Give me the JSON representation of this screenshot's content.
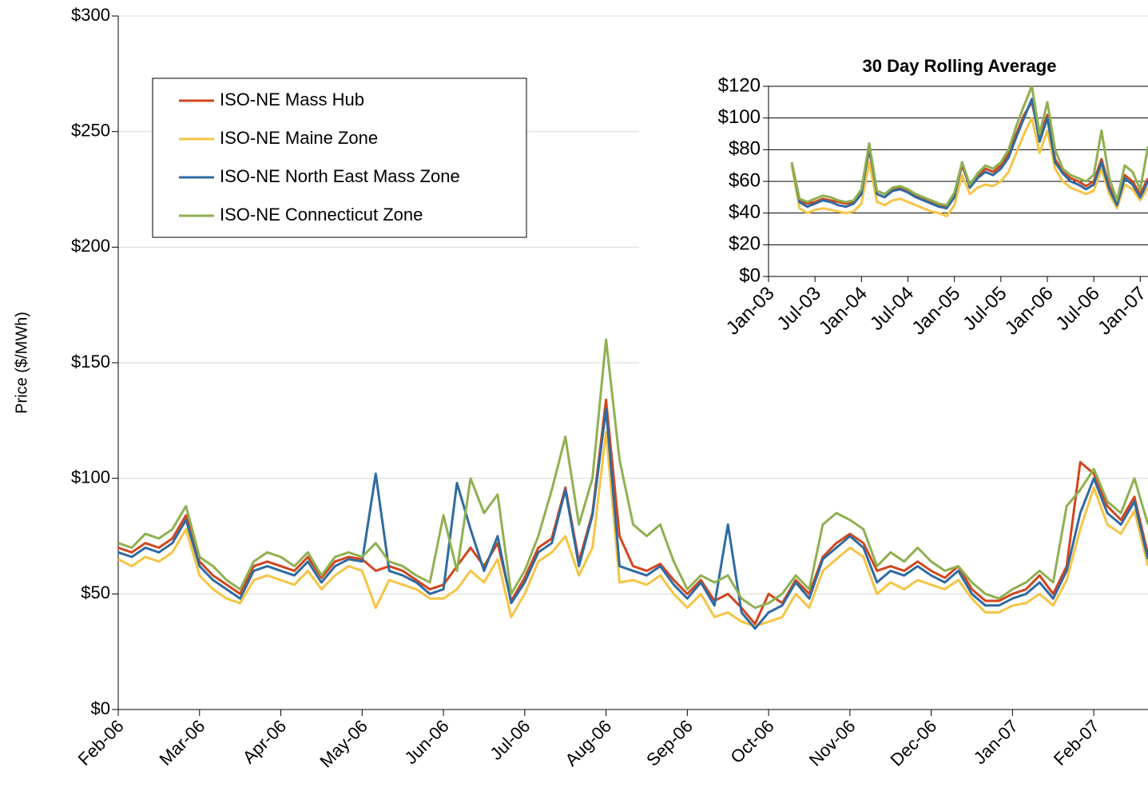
{
  "chart_data": [
    {
      "type": "line",
      "y_label": "Price ($/MWh)",
      "categories": [
        "Feb-06",
        null,
        null,
        null,
        null,
        null,
        "Mar-06",
        null,
        null,
        null,
        null,
        null,
        "Apr-06",
        null,
        null,
        null,
        null,
        null,
        "May-06",
        null,
        null,
        null,
        null,
        null,
        "Jun-06",
        null,
        null,
        null,
        null,
        null,
        "Jul-06",
        null,
        null,
        null,
        null,
        null,
        "Aug-06",
        null,
        null,
        null,
        null,
        null,
        "Sep-06",
        null,
        null,
        null,
        null,
        null,
        "Oct-06",
        null,
        null,
        null,
        null,
        null,
        "Nov-06",
        null,
        null,
        null,
        null,
        null,
        "Dec-06",
        null,
        null,
        null,
        null,
        null,
        "Jan-07",
        null,
        null,
        null,
        null,
        null,
        "Feb-07",
        null,
        null,
        null,
        null
      ],
      "series": [
        {
          "name": "ISO-NE Mass Hub",
          "color": "#d2461e",
          "values": [
            70,
            68,
            72,
            70,
            74,
            84,
            64,
            58,
            54,
            50,
            62,
            64,
            62,
            60,
            66,
            57,
            64,
            66,
            65,
            60,
            62,
            60,
            56,
            52,
            54,
            62,
            70,
            62,
            72,
            47,
            57,
            70,
            74,
            96,
            64,
            85,
            134,
            75,
            62,
            60,
            63,
            56,
            50,
            56,
            47,
            50,
            44,
            37,
            50,
            46,
            56,
            50,
            66,
            72,
            76,
            72,
            60,
            62,
            60,
            64,
            60,
            57,
            62,
            52,
            47,
            47,
            50,
            52,
            58,
            50,
            62,
            107,
            102,
            88,
            82,
            92,
            67
          ]
        },
        {
          "name": "ISO-NE Maine Zone",
          "color": "#f6c445",
          "values": [
            65,
            62,
            66,
            64,
            68,
            78,
            58,
            52,
            48,
            46,
            56,
            58,
            56,
            54,
            60,
            52,
            58,
            62,
            60,
            44,
            56,
            54,
            52,
            48,
            48,
            52,
            60,
            55,
            65,
            40,
            50,
            64,
            68,
            75,
            58,
            70,
            120,
            55,
            56,
            54,
            58,
            50,
            44,
            50,
            40,
            42,
            38,
            36,
            38,
            40,
            50,
            44,
            60,
            65,
            70,
            66,
            50,
            55,
            52,
            56,
            54,
            52,
            56,
            48,
            42,
            42,
            45,
            46,
            50,
            45,
            56,
            78,
            96,
            80,
            76,
            86,
            62
          ]
        },
        {
          "name": "ISO-NE North East Mass Zone",
          "color": "#2f6ba1",
          "values": [
            68,
            66,
            70,
            68,
            72,
            82,
            62,
            56,
            52,
            48,
            60,
            62,
            60,
            58,
            64,
            55,
            62,
            65,
            64,
            102,
            60,
            58,
            55,
            50,
            52,
            98,
            78,
            60,
            75,
            46,
            55,
            68,
            72,
            95,
            62,
            84,
            130,
            62,
            60,
            58,
            62,
            54,
            48,
            55,
            45,
            80,
            42,
            35,
            42,
            45,
            55,
            48,
            65,
            70,
            75,
            70,
            55,
            60,
            58,
            62,
            58,
            55,
            60,
            50,
            45,
            45,
            48,
            50,
            55,
            48,
            60,
            85,
            100,
            85,
            80,
            90,
            65
          ]
        },
        {
          "name": "ISO-NE Connecticut Zone",
          "color": "#8fb04f",
          "values": [
            72,
            70,
            76,
            74,
            78,
            88,
            66,
            62,
            56,
            52,
            64,
            68,
            66,
            62,
            68,
            58,
            66,
            68,
            66,
            72,
            64,
            62,
            58,
            55,
            84,
            60,
            100,
            85,
            93,
            50,
            60,
            75,
            95,
            118,
            80,
            100,
            160,
            108,
            80,
            75,
            80,
            64,
            52,
            58,
            55,
            58,
            48,
            44,
            46,
            50,
            58,
            52,
            80,
            85,
            82,
            78,
            62,
            68,
            64,
            70,
            64,
            60,
            62,
            55,
            50,
            48,
            52,
            55,
            60,
            55,
            88,
            95,
            104,
            90,
            85,
            100,
            80
          ]
        }
      ],
      "ylim": [
        0,
        300
      ],
      "yticks": [
        {
          "value": 0,
          "label": "$0"
        },
        {
          "value": 50,
          "label": "$50"
        },
        {
          "value": 100,
          "label": "$100"
        },
        {
          "value": 150,
          "label": "$150"
        },
        {
          "value": 200,
          "label": "$200"
        },
        {
          "value": 250,
          "label": "$250"
        },
        {
          "value": 300,
          "label": "$300"
        }
      ],
      "grid": true,
      "legend": "upper left"
    },
    {
      "type": "line",
      "title": "30 Day Rolling Average",
      "categories": [
        "Jan-03",
        null,
        null,
        null,
        null,
        null,
        "Jul-03",
        null,
        null,
        null,
        null,
        null,
        "Jan-04",
        null,
        null,
        null,
        null,
        null,
        "Jul-04",
        null,
        null,
        null,
        null,
        null,
        "Jan-05",
        null,
        null,
        null,
        null,
        null,
        "Jul-05",
        null,
        null,
        null,
        null,
        null,
        "Jan-06",
        null,
        null,
        null,
        null,
        null,
        "Jul-06",
        null,
        null,
        null,
        null,
        null,
        "Jan-07",
        null
      ],
      "series": [
        {
          "color": "#d2461e",
          "values": [
            null,
            null,
            null,
            70,
            48,
            46,
            47,
            49,
            48,
            47,
            46,
            47,
            53,
            80,
            54,
            52,
            55,
            56,
            54,
            51,
            49,
            47,
            45,
            44,
            52,
            70,
            57,
            63,
            68,
            66,
            70,
            78,
            90,
            102,
            110,
            88,
            102,
            74,
            66,
            62,
            60,
            57,
            60,
            74,
            57,
            46,
            64,
            60,
            52,
            62
          ]
        },
        {
          "color": "#f6c445",
          "values": [
            null,
            null,
            null,
            70,
            43,
            40,
            42,
            43,
            42,
            41,
            40,
            41,
            46,
            72,
            47,
            45,
            48,
            49,
            47,
            45,
            43,
            41,
            40,
            38,
            45,
            64,
            52,
            56,
            58,
            57,
            60,
            66,
            78,
            90,
            100,
            78,
            92,
            68,
            60,
            56,
            54,
            52,
            54,
            68,
            52,
            43,
            58,
            55,
            48,
            56
          ]
        },
        {
          "color": "#2f6ba1",
          "values": [
            null,
            null,
            null,
            72,
            47,
            44,
            46,
            48,
            47,
            45,
            44,
            46,
            52,
            82,
            52,
            50,
            54,
            55,
            53,
            50,
            48,
            46,
            44,
            43,
            50,
            72,
            56,
            62,
            66,
            64,
            68,
            75,
            88,
            100,
            112,
            85,
            100,
            72,
            65,
            60,
            58,
            55,
            58,
            72,
            55,
            45,
            62,
            58,
            50,
            60
          ]
        },
        {
          "color": "#8fb04f",
          "values": [
            null,
            null,
            null,
            72,
            49,
            47,
            49,
            51,
            50,
            48,
            47,
            48,
            55,
            84,
            54,
            52,
            56,
            57,
            55,
            52,
            50,
            48,
            46,
            45,
            53,
            72,
            58,
            65,
            70,
            68,
            72,
            80,
            95,
            108,
            120,
            90,
            110,
            80,
            68,
            64,
            62,
            60,
            64,
            92,
            62,
            48,
            70,
            66,
            55,
            82
          ]
        }
      ],
      "ylim": [
        0,
        120
      ],
      "yticks": [
        {
          "value": 0,
          "label": "$0"
        },
        {
          "value": 20,
          "label": "$20"
        },
        {
          "value": 40,
          "label": "$40"
        },
        {
          "value": 60,
          "label": "$60"
        },
        {
          "value": 80,
          "label": "$80"
        },
        {
          "value": 100,
          "label": "$100"
        },
        {
          "value": 120,
          "label": "$120"
        }
      ],
      "grid": true
    }
  ]
}
